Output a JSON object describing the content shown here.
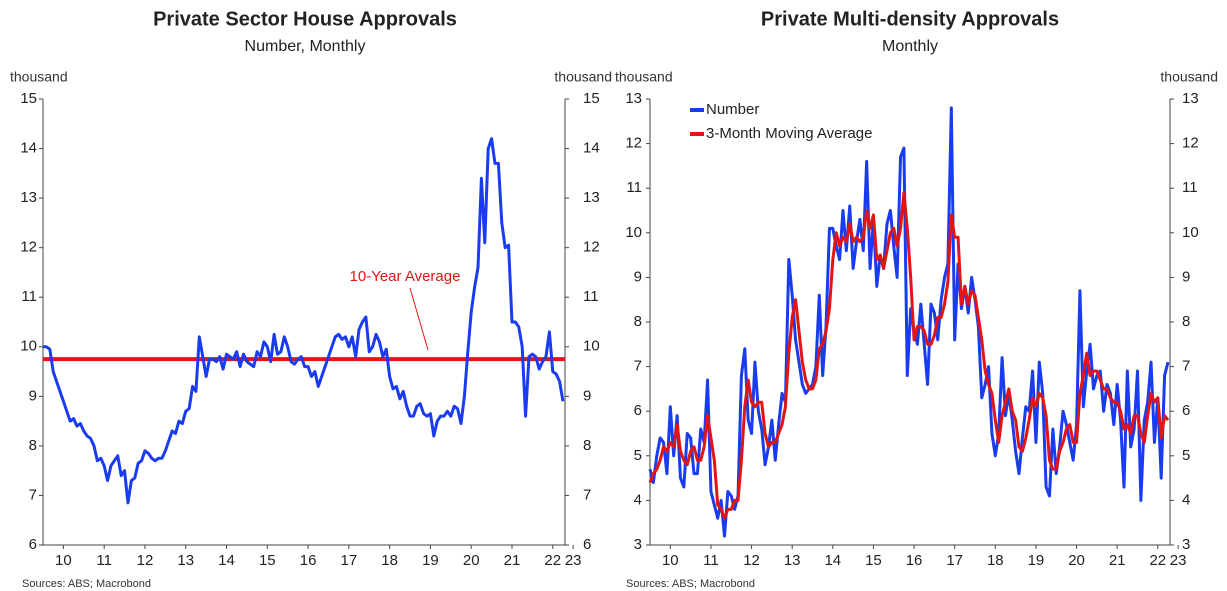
{
  "chart_data": [
    {
      "type": "line",
      "title": "Private Sector House Approvals",
      "subtitle": "Number, Monthly",
      "ylabel": "thousand",
      "y2label": "thousand",
      "source": "Sources: ABS; Macrobond",
      "x": [
        2010.0,
        2010.083,
        2010.167,
        2010.25,
        2010.333,
        2010.417,
        2010.5,
        2010.583,
        2010.667,
        2010.75,
        2010.833,
        2010.917,
        2011.0,
        2011.083,
        2011.167,
        2011.25,
        2011.333,
        2011.417,
        2011.5,
        2011.583,
        2011.667,
        2011.75,
        2011.833,
        2011.917,
        2012.0,
        2012.083,
        2012.167,
        2012.25,
        2012.333,
        2012.417,
        2012.5,
        2012.583,
        2012.667,
        2012.75,
        2012.833,
        2012.917,
        2013.0,
        2013.083,
        2013.167,
        2013.25,
        2013.333,
        2013.417,
        2013.5,
        2013.583,
        2013.667,
        2013.75,
        2013.833,
        2013.917,
        2014.0,
        2014.083,
        2014.167,
        2014.25,
        2014.333,
        2014.417,
        2014.5,
        2014.583,
        2014.667,
        2014.75,
        2014.833,
        2014.917,
        2015.0,
        2015.083,
        2015.167,
        2015.25,
        2015.333,
        2015.417,
        2015.5,
        2015.583,
        2015.667,
        2015.75,
        2015.833,
        2015.917,
        2016.0,
        2016.083,
        2016.167,
        2016.25,
        2016.333,
        2016.417,
        2016.5,
        2016.583,
        2016.667,
        2016.75,
        2016.833,
        2016.917,
        2017.0,
        2017.083,
        2017.167,
        2017.25,
        2017.333,
        2017.417,
        2017.5,
        2017.583,
        2017.667,
        2017.75,
        2017.833,
        2017.917,
        2018.0,
        2018.083,
        2018.167,
        2018.25,
        2018.333,
        2018.417,
        2018.5,
        2018.583,
        2018.667,
        2018.75,
        2018.833,
        2018.917,
        2019.0,
        2019.083,
        2019.167,
        2019.25,
        2019.333,
        2019.417,
        2019.5,
        2019.583,
        2019.667,
        2019.75,
        2019.833,
        2019.917,
        2020.0,
        2020.083,
        2020.167,
        2020.25,
        2020.333,
        2020.417,
        2020.5,
        2020.583,
        2020.667,
        2020.75,
        2020.833,
        2020.917,
        2021.0,
        2021.083,
        2021.167,
        2021.25,
        2021.333,
        2021.417,
        2021.5,
        2021.583,
        2021.667,
        2021.75,
        2021.833,
        2021.917,
        2022.0,
        2022.083,
        2022.167,
        2022.25,
        2022.333,
        2022.417,
        2022.5,
        2022.583,
        2022.667,
        2022.75
      ],
      "xlim": [
        2010.0,
        2022.8
      ],
      "xticks": [
        {
          "value": 2010.5,
          "label": "10"
        },
        {
          "value": 2011.5,
          "label": "11"
        },
        {
          "value": 2012.5,
          "label": "12"
        },
        {
          "value": 2013.5,
          "label": "13"
        },
        {
          "value": 2014.5,
          "label": "14"
        },
        {
          "value": 2015.5,
          "label": "15"
        },
        {
          "value": 2016.5,
          "label": "16"
        },
        {
          "value": 2017.5,
          "label": "17"
        },
        {
          "value": 2018.5,
          "label": "18"
        },
        {
          "value": 2019.5,
          "label": "19"
        },
        {
          "value": 2020.5,
          "label": "20"
        },
        {
          "value": 2021.5,
          "label": "21"
        },
        {
          "value": 2022.5,
          "label": "22"
        },
        {
          "value": 2023.0,
          "label": "23"
        }
      ],
      "ylim": [
        6,
        15
      ],
      "yticks": [
        6,
        7,
        8,
        9,
        10,
        11,
        12,
        13,
        14,
        15
      ],
      "y2lim": [
        6,
        15
      ],
      "y2ticks": [
        6,
        7,
        8,
        9,
        10,
        11,
        12,
        13,
        14,
        15
      ],
      "reference_line": {
        "label": "10-Year Average",
        "value": 9.75,
        "color": "#e31414"
      },
      "series": [
        {
          "color": "#1a3cf0",
          "values": [
            10.0,
            10.0,
            9.95,
            9.5,
            9.3,
            9.1,
            8.9,
            8.7,
            8.5,
            8.55,
            8.4,
            8.45,
            8.3,
            8.2,
            8.15,
            8.0,
            7.7,
            7.75,
            7.6,
            7.3,
            7.6,
            7.7,
            7.8,
            7.4,
            7.5,
            6.85,
            7.3,
            7.35,
            7.65,
            7.7,
            7.9,
            7.85,
            7.75,
            7.7,
            7.75,
            7.75,
            7.9,
            8.1,
            8.3,
            8.25,
            8.5,
            8.45,
            8.7,
            8.75,
            9.2,
            9.1,
            10.2,
            9.8,
            9.4,
            9.75,
            9.75,
            9.7,
            9.8,
            9.55,
            9.85,
            9.8,
            9.75,
            9.9,
            9.6,
            9.85,
            9.7,
            9.65,
            9.6,
            9.9,
            9.8,
            10.1,
            10.0,
            9.7,
            10.25,
            9.85,
            9.9,
            10.2,
            10.0,
            9.7,
            9.65,
            9.75,
            9.8,
            9.6,
            9.6,
            9.4,
            9.5,
            9.2,
            9.4,
            9.6,
            9.8,
            10.0,
            10.2,
            10.25,
            10.15,
            10.2,
            10.0,
            10.2,
            9.8,
            10.35,
            10.5,
            10.6,
            9.9,
            10.0,
            10.25,
            10.1,
            9.8,
            9.95,
            9.4,
            9.15,
            9.2,
            8.95,
            9.1,
            8.8,
            8.6,
            8.6,
            8.8,
            8.85,
            8.65,
            8.6,
            8.65,
            8.2,
            8.5,
            8.6,
            8.6,
            8.7,
            8.6,
            8.8,
            8.75,
            8.45,
            9.0,
            9.9,
            10.7,
            11.2,
            11.6,
            13.4,
            12.1,
            14.0,
            14.2,
            13.7,
            13.7,
            12.5,
            12.0,
            12.05,
            10.5,
            10.5,
            10.4,
            10.0,
            8.6,
            9.8,
            9.85,
            9.8,
            9.55,
            9.7,
            9.8,
            10.3,
            9.5,
            9.45,
            9.3,
            8.9
          ]
        }
      ]
    },
    {
      "type": "line",
      "title": "Private Multi-density Approvals",
      "subtitle": "Monthly",
      "ylabel": "thousand",
      "y2label": "thousand",
      "source": "Sources: ABS; Macrobond",
      "legend": "upper-left",
      "x": [
        2010.0,
        2010.083,
        2010.167,
        2010.25,
        2010.333,
        2010.417,
        2010.5,
        2010.583,
        2010.667,
        2010.75,
        2010.833,
        2010.917,
        2011.0,
        2011.083,
        2011.167,
        2011.25,
        2011.333,
        2011.417,
        2011.5,
        2011.583,
        2011.667,
        2011.75,
        2011.833,
        2011.917,
        2012.0,
        2012.083,
        2012.167,
        2012.25,
        2012.333,
        2012.417,
        2012.5,
        2012.583,
        2012.667,
        2012.75,
        2012.833,
        2012.917,
        2013.0,
        2013.083,
        2013.167,
        2013.25,
        2013.333,
        2013.417,
        2013.5,
        2013.583,
        2013.667,
        2013.75,
        2013.833,
        2013.917,
        2014.0,
        2014.083,
        2014.167,
        2014.25,
        2014.333,
        2014.417,
        2014.5,
        2014.583,
        2014.667,
        2014.75,
        2014.833,
        2014.917,
        2015.0,
        2015.083,
        2015.167,
        2015.25,
        2015.333,
        2015.417,
        2015.5,
        2015.583,
        2015.667,
        2015.75,
        2015.833,
        2015.917,
        2016.0,
        2016.083,
        2016.167,
        2016.25,
        2016.333,
        2016.417,
        2016.5,
        2016.583,
        2016.667,
        2016.75,
        2016.833,
        2016.917,
        2017.0,
        2017.083,
        2017.167,
        2017.25,
        2017.333,
        2017.417,
        2017.5,
        2017.583,
        2017.667,
        2017.75,
        2017.833,
        2017.917,
        2018.0,
        2018.083,
        2018.167,
        2018.25,
        2018.333,
        2018.417,
        2018.5,
        2018.583,
        2018.667,
        2018.75,
        2018.833,
        2018.917,
        2019.0,
        2019.083,
        2019.167,
        2019.25,
        2019.333,
        2019.417,
        2019.5,
        2019.583,
        2019.667,
        2019.75,
        2019.833,
        2019.917,
        2020.0,
        2020.083,
        2020.167,
        2020.25,
        2020.333,
        2020.417,
        2020.5,
        2020.583,
        2020.667,
        2020.75,
        2020.833,
        2020.917,
        2021.0,
        2021.083,
        2021.167,
        2021.25,
        2021.333,
        2021.417,
        2021.5,
        2021.583,
        2021.667,
        2021.75,
        2021.833,
        2021.917,
        2022.0,
        2022.083,
        2022.167,
        2022.25,
        2022.333,
        2022.417,
        2022.5,
        2022.583,
        2022.667,
        2022.75
      ],
      "xlim": [
        2010.0,
        2022.8
      ],
      "xticks": [
        {
          "value": 2010.5,
          "label": "10"
        },
        {
          "value": 2011.5,
          "label": "11"
        },
        {
          "value": 2012.5,
          "label": "12"
        },
        {
          "value": 2013.5,
          "label": "13"
        },
        {
          "value": 2014.5,
          "label": "14"
        },
        {
          "value": 2015.5,
          "label": "15"
        },
        {
          "value": 2016.5,
          "label": "16"
        },
        {
          "value": 2017.5,
          "label": "17"
        },
        {
          "value": 2018.5,
          "label": "18"
        },
        {
          "value": 2019.5,
          "label": "19"
        },
        {
          "value": 2020.5,
          "label": "20"
        },
        {
          "value": 2021.5,
          "label": "21"
        },
        {
          "value": 2022.5,
          "label": "22"
        },
        {
          "value": 2023.0,
          "label": "23"
        }
      ],
      "ylim": [
        3,
        13
      ],
      "yticks": [
        3,
        4,
        5,
        6,
        7,
        8,
        9,
        10,
        11,
        12,
        13
      ],
      "y2lim": [
        3,
        13
      ],
      "y2ticks": [
        3,
        4,
        5,
        6,
        7,
        8,
        9,
        10,
        11,
        12,
        13
      ],
      "series": [
        {
          "name": "Number",
          "color": "#1a3cf0",
          "values": [
            4.7,
            4.4,
            5.0,
            5.4,
            5.3,
            4.6,
            6.1,
            5.0,
            5.9,
            4.5,
            4.3,
            5.5,
            5.4,
            4.6,
            4.6,
            5.6,
            5.3,
            6.7,
            4.2,
            3.9,
            3.6,
            4.0,
            3.2,
            4.2,
            4.1,
            3.8,
            4.1,
            6.8,
            7.4,
            5.8,
            5.5,
            7.1,
            6.0,
            5.6,
            4.8,
            5.2,
            5.8,
            4.9,
            5.7,
            6.4,
            6.2,
            9.4,
            8.6,
            7.6,
            7.1,
            6.6,
            6.4,
            6.5,
            6.6,
            7.0,
            8.6,
            6.8,
            7.9,
            10.1,
            10.1,
            9.7,
            9.4,
            10.5,
            9.6,
            10.6,
            9.2,
            9.8,
            10.3,
            9.6,
            11.6,
            9.2,
            10.3,
            8.8,
            9.5,
            9.2,
            10.2,
            10.5,
            9.7,
            9.0,
            11.7,
            11.9,
            6.8,
            8.3,
            7.8,
            7.5,
            8.4,
            7.5,
            6.6,
            8.4,
            8.2,
            7.6,
            8.5,
            9.0,
            9.3,
            12.8,
            7.6,
            9.3,
            8.3,
            8.8,
            8.2,
            9.0,
            8.5,
            7.9,
            6.3,
            6.6,
            7.0,
            5.5,
            5.0,
            5.5,
            7.2,
            5.9,
            6.4,
            5.8,
            5.1,
            4.6,
            5.4,
            6.1,
            6.0,
            6.9,
            5.3,
            7.1,
            6.4,
            4.3,
            4.1,
            5.6,
            4.6,
            5.2,
            6.0,
            5.7,
            5.3,
            4.9,
            5.7,
            8.7,
            6.1,
            6.9,
            7.5,
            6.5,
            6.8,
            6.9,
            6.0,
            6.6,
            6.4,
            5.7,
            6.6,
            5.8,
            4.3,
            6.9,
            5.2,
            5.6,
            6.9,
            4.0,
            5.8,
            6.2,
            7.1,
            5.3,
            6.3,
            4.5,
            6.8,
            7.1
          ]
        },
        {
          "name": "3-Month Moving Average",
          "color": "#e31414",
          "values": [
            4.4,
            4.6,
            4.7,
            4.9,
            5.2,
            5.1,
            5.3,
            5.2,
            5.7,
            5.1,
            4.9,
            4.8,
            5.1,
            5.2,
            4.9,
            4.9,
            5.2,
            5.9,
            5.4,
            4.9,
            3.9,
            3.8,
            3.6,
            3.8,
            3.8,
            4.0,
            4.0,
            4.9,
            6.1,
            6.7,
            6.2,
            6.1,
            6.2,
            6.2,
            5.5,
            5.2,
            5.3,
            5.3,
            5.5,
            5.7,
            6.1,
            7.3,
            8.1,
            8.5,
            7.8,
            7.1,
            6.7,
            6.5,
            6.5,
            6.7,
            7.4,
            7.5,
            7.8,
            8.3,
            9.4,
            10.0,
            9.7,
            9.9,
            9.8,
            10.2,
            9.8,
            9.9,
            9.8,
            9.9,
            10.5,
            10.1,
            10.4,
            9.4,
            9.5,
            9.2,
            9.6,
            10.0,
            10.1,
            9.7,
            10.1,
            10.9,
            10.1,
            9.0,
            7.6,
            7.9,
            7.9,
            7.8,
            7.5,
            7.5,
            7.7,
            8.1,
            8.1,
            8.4,
            8.9,
            10.4,
            9.9,
            9.9,
            8.4,
            8.8,
            8.4,
            8.7,
            8.6,
            8.1,
            7.6,
            6.9,
            6.6,
            6.4,
            5.8,
            5.3,
            5.9,
            6.2,
            6.5,
            6.0,
            5.8,
            5.2,
            5.1,
            5.4,
            5.8,
            6.3,
            6.1,
            6.4,
            6.3,
            5.9,
            4.9,
            4.7,
            4.7,
            5.1,
            5.3,
            5.6,
            5.7,
            5.3,
            5.3,
            6.4,
            6.8,
            7.3,
            6.8,
            6.9,
            6.9,
            6.7,
            6.5,
            6.5,
            6.3,
            6.2,
            6.2,
            6.0,
            5.6,
            5.7,
            5.5,
            5.9,
            5.9,
            5.5,
            5.3,
            5.9,
            6.4,
            6.2,
            6.3,
            5.4,
            5.9,
            5.8
          ]
        }
      ]
    }
  ]
}
